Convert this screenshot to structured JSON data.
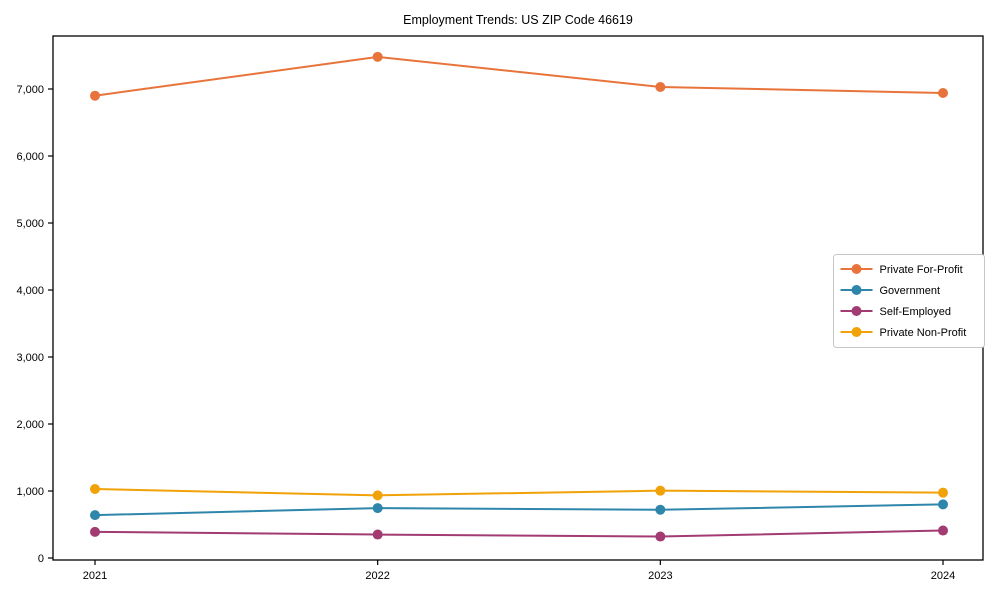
{
  "chart_data": {
    "type": "line",
    "title": "Employment Trends: US ZIP Code 46619",
    "xlabel": "",
    "ylabel": "",
    "categories": [
      "2021",
      "2022",
      "2023",
      "2024"
    ],
    "series": [
      {
        "name": "Private For-Profit",
        "color": "#E8743B",
        "values": [
          6900,
          7480,
          7030,
          6940
        ]
      },
      {
        "name": "Government",
        "color": "#2E86AB",
        "values": [
          640,
          745,
          720,
          800
        ]
      },
      {
        "name": "Self-Employed",
        "color": "#A23B72",
        "values": [
          390,
          350,
          320,
          410
        ]
      },
      {
        "name": "Private Non-Profit",
        "color": "#F1A208",
        "values": [
          1030,
          935,
          1005,
          975
        ]
      }
    ],
    "y_ticks": [
      {
        "value": 0,
        "label": "0"
      },
      {
        "value": 1000,
        "label": "1,000"
      },
      {
        "value": 2000,
        "label": "2,000"
      },
      {
        "value": 3000,
        "label": "3,000"
      },
      {
        "value": 4000,
        "label": "4,000"
      },
      {
        "value": 5000,
        "label": "5,000"
      },
      {
        "value": 6000,
        "label": "6,000"
      },
      {
        "value": 7000,
        "label": "7,000"
      }
    ],
    "ylim": [
      0,
      7790
    ],
    "grid": false,
    "legend_position": "center right",
    "marker": "circle",
    "axis_color": "#000000",
    "legend_border_color": "#c7c7c7",
    "legend_background": "#ffffff"
  }
}
